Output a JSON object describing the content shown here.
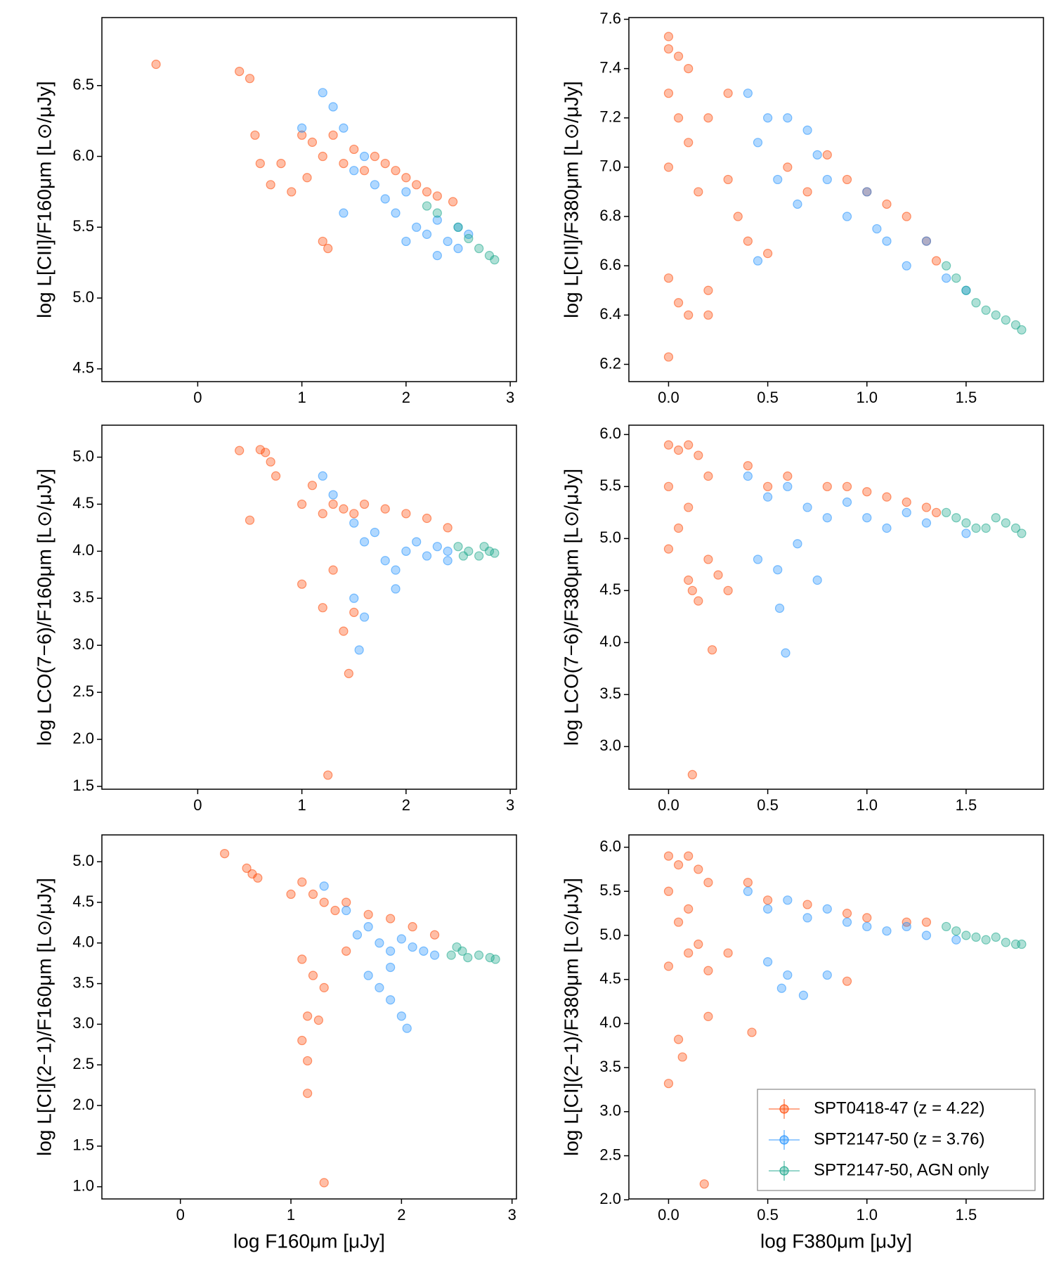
{
  "chart_data": [
    {
      "type": "scatter",
      "ylabel": "log L[CII]/F160μm [L⊙/μJy]",
      "xlim": [
        -0.92,
        3.06
      ],
      "ylim": [
        4.41,
        6.98
      ],
      "xticks": [
        0,
        1,
        2,
        3
      ],
      "yticks": [
        4.5,
        {
          "value": 5,
          "label": "5.0"
        },
        5.5,
        {
          "value": 6,
          "label": "6.0"
        },
        6.5
      ],
      "series": [
        {
          "color": "#ff4500",
          "x": [
            -0.4,
            0.4,
            0.5,
            0.55,
            0.6,
            0.7,
            0.8,
            0.9,
            1.0,
            1.05,
            1.1,
            1.2,
            1.2,
            1.3,
            1.4,
            1.5,
            1.6,
            1.7,
            1.8,
            1.9,
            2.0,
            2.1,
            2.2,
            2.3,
            2.45,
            1.25
          ],
          "values": [
            6.65,
            6.6,
            6.55,
            6.15,
            5.95,
            5.8,
            5.95,
            5.75,
            6.15,
            5.85,
            6.1,
            5.4,
            6.0,
            6.15,
            5.95,
            6.05,
            5.9,
            6.0,
            5.95,
            5.9,
            5.85,
            5.8,
            5.75,
            5.72,
            5.68,
            5.35
          ]
        },
        {
          "color": "#1e90ff",
          "x": [
            1.2,
            1.3,
            1.4,
            1.5,
            1.6,
            1.7,
            1.8,
            1.9,
            2.0,
            2.1,
            2.2,
            2.3,
            2.4,
            2.5,
            2.6,
            1.0,
            1.4,
            2.0,
            2.5,
            2.3
          ],
          "values": [
            6.45,
            6.35,
            6.2,
            5.9,
            6.0,
            5.8,
            5.7,
            5.6,
            5.75,
            5.5,
            5.45,
            5.55,
            5.4,
            5.35,
            5.45,
            6.2,
            5.6,
            5.4,
            5.5,
            5.3
          ]
        },
        {
          "color": "#17a589",
          "x": [
            2.3,
            2.5,
            2.6,
            2.7,
            2.8,
            2.85,
            2.2
          ],
          "values": [
            5.6,
            5.5,
            5.42,
            5.35,
            5.3,
            5.27,
            5.65
          ]
        }
      ]
    },
    {
      "type": "scatter",
      "ylabel": "log L[CII]/F380μm [L⊙/μJy]",
      "xlim": [
        -0.2,
        1.89
      ],
      "ylim": [
        6.13,
        7.607
      ],
      "xticks": [
        {
          "value": 0,
          "label": "0.0"
        },
        0.5,
        {
          "value": 1,
          "label": "1.0"
        },
        1.5
      ],
      "yticks": [
        6.2,
        6.4,
        6.6,
        6.8,
        {
          "value": 7,
          "label": "7.0"
        },
        7.2,
        7.4,
        7.6
      ],
      "series": [
        {
          "color": "#ff4500",
          "x": [
            0.0,
            0.0,
            0.05,
            0.1,
            0.0,
            0.05,
            0.1,
            0.0,
            0.15,
            0.2,
            0.3,
            0.3,
            0.35,
            0.4,
            0.5,
            0.6,
            0.7,
            0.8,
            0.9,
            1.0,
            1.1,
            1.2,
            1.3,
            1.35,
            0.0,
            0.05,
            0.1,
            0.2,
            0.0,
            0.2
          ],
          "values": [
            7.53,
            7.48,
            7.45,
            7.4,
            7.3,
            7.2,
            7.1,
            7.0,
            6.9,
            7.2,
            7.3,
            6.95,
            6.8,
            6.7,
            6.65,
            7.0,
            6.9,
            7.05,
            6.95,
            6.9,
            6.85,
            6.8,
            6.7,
            6.62,
            6.55,
            6.45,
            6.4,
            6.4,
            6.23,
            6.5
          ]
        },
        {
          "color": "#1e90ff",
          "x": [
            0.4,
            0.5,
            0.45,
            0.6,
            0.7,
            0.55,
            0.65,
            0.8,
            0.9,
            1.0,
            1.1,
            1.2,
            1.3,
            1.4,
            1.5,
            0.45,
            0.75,
            1.05
          ],
          "values": [
            7.3,
            7.2,
            7.1,
            7.2,
            7.15,
            6.95,
            6.85,
            6.95,
            6.8,
            6.9,
            6.7,
            6.6,
            6.7,
            6.55,
            6.5,
            6.62,
            7.05,
            6.75
          ]
        },
        {
          "color": "#17a589",
          "x": [
            1.4,
            1.45,
            1.5,
            1.55,
            1.6,
            1.65,
            1.7,
            1.75,
            1.78
          ],
          "values": [
            6.6,
            6.55,
            6.5,
            6.45,
            6.42,
            6.4,
            6.38,
            6.36,
            6.34
          ]
        }
      ]
    },
    {
      "type": "scatter",
      "ylabel": "log LCO(7−6)/F160μm [L⊙/μJy]",
      "xlim": [
        -0.92,
        3.06
      ],
      "ylim": [
        1.47,
        5.34
      ],
      "xticks": [
        0,
        1,
        2,
        3
      ],
      "yticks": [
        1.5,
        {
          "value": 2,
          "label": "2.0"
        },
        2.5,
        {
          "value": 3,
          "label": "3.0"
        },
        3.5,
        {
          "value": 4,
          "label": "4.0"
        },
        4.5,
        {
          "value": 5,
          "label": "5.0"
        }
      ],
      "series": [
        {
          "color": "#ff4500",
          "x": [
            0.4,
            0.6,
            0.65,
            0.7,
            0.75,
            0.5,
            1.0,
            1.1,
            1.2,
            1.3,
            1.4,
            1.5,
            1.6,
            1.8,
            2.0,
            2.2,
            2.4,
            1.0,
            1.2,
            1.4,
            1.5,
            1.45,
            1.25,
            1.3
          ],
          "values": [
            5.07,
            5.08,
            5.05,
            4.95,
            4.8,
            4.33,
            4.5,
            4.7,
            4.4,
            4.5,
            4.45,
            4.4,
            4.5,
            4.45,
            4.4,
            4.35,
            4.25,
            3.65,
            3.4,
            3.15,
            3.35,
            2.7,
            1.62,
            3.8
          ]
        },
        {
          "color": "#1e90ff",
          "x": [
            1.2,
            1.3,
            1.5,
            1.6,
            1.7,
            1.8,
            1.9,
            2.0,
            2.1,
            2.2,
            2.3,
            2.4,
            1.5,
            1.6,
            1.55,
            2.4,
            1.9
          ],
          "values": [
            4.8,
            4.6,
            4.3,
            4.1,
            4.2,
            3.9,
            3.8,
            4.0,
            4.1,
            3.95,
            4.05,
            4.0,
            3.5,
            3.3,
            2.95,
            3.9,
            3.6
          ]
        },
        {
          "color": "#17a589",
          "x": [
            2.5,
            2.6,
            2.7,
            2.8,
            2.75,
            2.85,
            2.55
          ],
          "values": [
            4.05,
            4.0,
            3.95,
            4.0,
            4.05,
            3.98,
            3.95
          ]
        }
      ]
    },
    {
      "type": "scatter",
      "ylabel": "log LCO(7−6)/F380μm [L⊙/μJy]",
      "xlim": [
        -0.2,
        1.89
      ],
      "ylim": [
        2.59,
        6.09
      ],
      "xticks": [
        {
          "value": 0,
          "label": "0.0"
        },
        0.5,
        {
          "value": 1,
          "label": "1.0"
        },
        1.5
      ],
      "yticks": [
        {
          "value": 3,
          "label": "3.0"
        },
        3.5,
        {
          "value": 4,
          "label": "4.0"
        },
        4.5,
        {
          "value": 5,
          "label": "5.0"
        },
        5.5,
        {
          "value": 6,
          "label": "6.0"
        }
      ],
      "series": [
        {
          "color": "#ff4500",
          "x": [
            0.0,
            0.05,
            0.1,
            0.15,
            0.2,
            0.0,
            0.1,
            0.05,
            0.0,
            0.1,
            0.12,
            0.15,
            0.2,
            0.25,
            0.3,
            0.4,
            0.5,
            0.6,
            0.8,
            0.9,
            1.0,
            1.1,
            1.2,
            1.3,
            1.35,
            0.22,
            0.12
          ],
          "values": [
            5.9,
            5.85,
            5.9,
            5.8,
            5.6,
            5.5,
            5.3,
            5.1,
            4.9,
            4.6,
            4.5,
            4.4,
            4.8,
            4.65,
            4.5,
            5.7,
            5.5,
            5.6,
            5.5,
            5.5,
            5.45,
            5.4,
            5.35,
            5.3,
            5.25,
            3.93,
            2.73
          ]
        },
        {
          "color": "#1e90ff",
          "x": [
            0.4,
            0.5,
            0.6,
            0.7,
            0.8,
            0.9,
            1.0,
            1.1,
            1.2,
            1.3,
            0.45,
            0.55,
            0.75,
            0.56,
            0.59,
            0.65,
            1.5
          ],
          "values": [
            5.6,
            5.4,
            5.5,
            5.3,
            5.2,
            5.35,
            5.2,
            5.1,
            5.25,
            5.15,
            4.8,
            4.7,
            4.6,
            4.33,
            3.9,
            4.95,
            5.05
          ]
        },
        {
          "color": "#17a589",
          "x": [
            1.4,
            1.45,
            1.5,
            1.55,
            1.6,
            1.65,
            1.7,
            1.75,
            1.78
          ],
          "values": [
            5.25,
            5.2,
            5.15,
            5.1,
            5.1,
            5.2,
            5.15,
            5.1,
            5.05
          ]
        }
      ]
    },
    {
      "type": "scatter",
      "ylabel": "log L[CI](2−1)/F160μm [L⊙/μJy]",
      "xlabel": "log F160μm [μJy]",
      "xlim": [
        -0.71,
        3.04
      ],
      "ylim": [
        0.85,
        5.33
      ],
      "xticks": [
        0,
        1,
        2,
        3
      ],
      "yticks": [
        {
          "value": 1,
          "label": "1.0"
        },
        1.5,
        {
          "value": 2,
          "label": "2.0"
        },
        2.5,
        {
          "value": 3,
          "label": "3.0"
        },
        3.5,
        {
          "value": 4,
          "label": "4.0"
        },
        4.5,
        {
          "value": 5,
          "label": "5.0"
        }
      ],
      "series": [
        {
          "color": "#ff4500",
          "x": [
            0.4,
            0.6,
            0.65,
            0.7,
            1.0,
            1.1,
            1.2,
            1.3,
            1.4,
            1.5,
            1.7,
            1.9,
            2.1,
            2.3,
            1.1,
            1.2,
            1.3,
            1.15,
            1.25,
            1.1,
            1.15,
            1.15,
            1.3,
            1.5
          ],
          "values": [
            5.1,
            4.92,
            4.85,
            4.8,
            4.6,
            4.75,
            4.6,
            4.5,
            4.4,
            4.5,
            4.35,
            4.3,
            4.2,
            4.1,
            3.8,
            3.6,
            3.45,
            3.1,
            3.05,
            2.8,
            2.55,
            2.15,
            1.05,
            3.9
          ]
        },
        {
          "color": "#1e90ff",
          "x": [
            1.3,
            1.5,
            1.6,
            1.7,
            1.8,
            1.9,
            2.0,
            2.1,
            2.2,
            2.3,
            1.7,
            1.8,
            1.9,
            2.0,
            2.05,
            1.9
          ],
          "values": [
            4.7,
            4.4,
            4.1,
            4.2,
            4.0,
            3.9,
            4.05,
            3.95,
            3.9,
            3.85,
            3.6,
            3.45,
            3.3,
            3.1,
            2.95,
            3.7
          ]
        },
        {
          "color": "#17a589",
          "x": [
            2.45,
            2.55,
            2.6,
            2.7,
            2.8,
            2.85,
            2.5
          ],
          "values": [
            3.85,
            3.9,
            3.82,
            3.85,
            3.82,
            3.8,
            3.95
          ]
        }
      ]
    },
    {
      "type": "scatter",
      "ylabel": "log L[CI](2−1)/F380μm [L⊙/μJy]",
      "xlabel": "log F380μm [μJy]",
      "xlim": [
        -0.2,
        1.89
      ],
      "ylim": [
        2.01,
        6.14
      ],
      "legend": "lower right",
      "xticks": [
        {
          "value": 0,
          "label": "0.0"
        },
        0.5,
        {
          "value": 1,
          "label": "1.0"
        },
        1.5
      ],
      "yticks": [
        {
          "value": 2,
          "label": "2.0"
        },
        2.5,
        {
          "value": 3,
          "label": "3.0"
        },
        3.5,
        {
          "value": 4,
          "label": "4.0"
        },
        4.5,
        {
          "value": 5,
          "label": "5.0"
        },
        5.5,
        {
          "value": 6,
          "label": "6.0"
        }
      ],
      "series": [
        {
          "name": "SPT0418-47 (z = 4.22)",
          "color": "#ff4500",
          "x": [
            0.0,
            0.05,
            0.1,
            0.15,
            0.2,
            0.0,
            0.1,
            0.05,
            0.15,
            0.1,
            0.2,
            0.3,
            0.4,
            0.5,
            0.7,
            0.9,
            1.0,
            1.2,
            1.3,
            0.0,
            0.2,
            0.42,
            0.05,
            0.07,
            0.0,
            0.18,
            0.9
          ],
          "values": [
            5.9,
            5.8,
            5.9,
            5.75,
            5.6,
            5.5,
            5.3,
            5.15,
            4.9,
            4.8,
            4.6,
            4.8,
            5.6,
            5.4,
            5.35,
            5.25,
            5.2,
            5.15,
            5.15,
            4.65,
            4.08,
            3.9,
            3.82,
            3.62,
            3.32,
            2.18,
            4.48
          ]
        },
        {
          "name": "SPT2147-50 (z = 3.76)",
          "color": "#1e90ff",
          "x": [
            0.4,
            0.5,
            0.6,
            0.7,
            0.8,
            0.9,
            1.0,
            1.1,
            1.2,
            1.3,
            0.5,
            0.6,
            0.57,
            0.68,
            0.8,
            1.45
          ],
          "values": [
            5.5,
            5.3,
            5.4,
            5.2,
            5.3,
            5.15,
            5.1,
            5.05,
            5.1,
            5.0,
            4.7,
            4.55,
            4.4,
            4.32,
            4.55,
            4.95
          ]
        },
        {
          "name": "SPT2147-50, AGN only",
          "color": "#17a589",
          "x": [
            1.4,
            1.45,
            1.5,
            1.55,
            1.6,
            1.65,
            1.7,
            1.75,
            1.78
          ],
          "values": [
            5.1,
            5.05,
            5.0,
            4.98,
            4.95,
            4.98,
            4.92,
            4.9,
            4.9
          ]
        }
      ]
    }
  ]
}
